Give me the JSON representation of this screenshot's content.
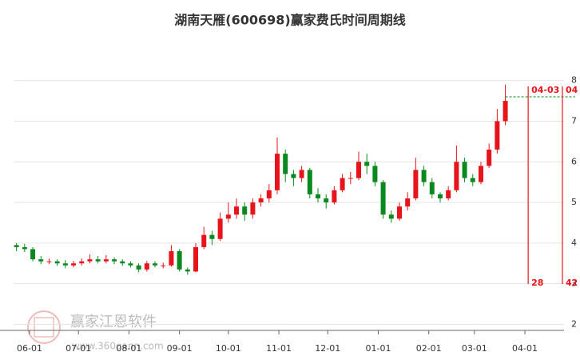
{
  "chart_data": {
    "type": "candlestick",
    "title": "湖南天雁(600698)赢家费氏时间周期线",
    "watermark": "赢家江恩软件",
    "watermark_url": "www.360gann.com",
    "x": [
      -8,
      -3,
      2,
      7,
      12,
      17,
      22,
      27,
      32,
      37,
      42,
      47,
      52,
      57,
      62,
      67,
      72,
      77,
      82,
      87,
      92,
      97,
      102,
      107,
      112,
      117,
      122,
      127,
      132,
      137,
      142,
      147,
      152,
      157,
      162,
      167,
      172,
      177,
      182,
      187,
      192,
      197,
      202,
      207,
      212,
      217,
      222,
      227,
      232,
      237,
      242,
      247,
      252,
      257,
      262,
      267,
      272,
      277,
      282,
      287,
      292
    ],
    "open": [
      3.95,
      3.9,
      3.85,
      3.6,
      3.55,
      3.55,
      3.5,
      3.45,
      3.5,
      3.55,
      3.6,
      3.55,
      3.6,
      3.55,
      3.5,
      3.45,
      3.35,
      3.5,
      3.45,
      3.45,
      3.8,
      3.35,
      3.3,
      3.9,
      4.2,
      4.1,
      4.6,
      4.7,
      4.9,
      4.7,
      5.0,
      5.1,
      5.3,
      6.2,
      5.7,
      5.6,
      5.8,
      5.2,
      5.1,
      5.0,
      5.3,
      5.6,
      5.6,
      6.0,
      5.9,
      5.5,
      4.7,
      4.6,
      4.9,
      5.1,
      5.8,
      5.5,
      5.2,
      5.1,
      5.3,
      6.0,
      5.6,
      5.5,
      5.9,
      6.3,
      7.0
    ],
    "high": [
      4.0,
      3.98,
      3.9,
      3.68,
      3.62,
      3.6,
      3.58,
      3.56,
      3.62,
      3.72,
      3.68,
      3.7,
      3.65,
      3.6,
      3.55,
      3.5,
      3.56,
      3.55,
      3.52,
      3.95,
      3.85,
      3.4,
      4.0,
      4.4,
      4.3,
      4.75,
      5.0,
      5.1,
      5.0,
      5.1,
      5.2,
      5.45,
      6.6,
      6.3,
      5.8,
      5.9,
      5.85,
      5.35,
      5.2,
      5.4,
      5.7,
      5.75,
      6.25,
      6.2,
      6.0,
      5.55,
      4.8,
      5.0,
      5.25,
      6.1,
      5.9,
      5.6,
      5.25,
      5.4,
      6.4,
      6.1,
      5.7,
      6.0,
      6.45,
      7.3,
      7.9
    ],
    "low": [
      3.8,
      3.78,
      3.55,
      3.48,
      3.48,
      3.44,
      3.38,
      3.4,
      3.45,
      3.5,
      3.5,
      3.5,
      3.48,
      3.44,
      3.4,
      3.28,
      3.3,
      3.4,
      3.38,
      3.42,
      3.3,
      3.22,
      3.28,
      3.85,
      3.95,
      4.05,
      4.5,
      4.6,
      4.55,
      4.6,
      4.9,
      5.0,
      5.2,
      5.5,
      5.4,
      5.5,
      5.1,
      5.0,
      4.85,
      4.95,
      5.25,
      5.45,
      5.55,
      5.7,
      5.4,
      4.6,
      4.5,
      4.55,
      4.8,
      5.05,
      5.4,
      5.1,
      5.0,
      5.05,
      5.25,
      5.5,
      5.4,
      5.45,
      5.85,
      6.2,
      6.9
    ],
    "close": [
      3.9,
      3.85,
      3.6,
      3.55,
      3.55,
      3.5,
      3.45,
      3.5,
      3.55,
      3.6,
      3.55,
      3.6,
      3.55,
      3.5,
      3.45,
      3.35,
      3.5,
      3.45,
      3.45,
      3.8,
      3.35,
      3.3,
      3.9,
      4.2,
      4.1,
      4.6,
      4.7,
      4.9,
      4.7,
      5.0,
      5.1,
      5.3,
      6.2,
      5.7,
      5.6,
      5.8,
      5.2,
      5.1,
      5.0,
      5.3,
      5.6,
      5.6,
      6.0,
      5.9,
      5.5,
      4.7,
      4.6,
      4.9,
      5.1,
      5.8,
      5.5,
      5.2,
      5.1,
      5.3,
      6.0,
      5.6,
      5.5,
      5.9,
      6.3,
      7.0,
      7.5
    ],
    "up_color": "#e8141b",
    "down_color": "#0a8a1e",
    "xlim": [
      -9.3,
      328
    ],
    "xticks": [
      {
        "value": 0,
        "label": "06-01"
      },
      {
        "value": 30,
        "label": "07-01"
      },
      {
        "value": 61,
        "label": "08-01"
      },
      {
        "value": 92,
        "label": "09-01"
      },
      {
        "value": 122,
        "label": "10-01"
      },
      {
        "value": 153,
        "label": "11-01"
      },
      {
        "value": 183,
        "label": "12-01"
      },
      {
        "value": 214,
        "label": "01-01"
      },
      {
        "value": 245,
        "label": "02-01"
      },
      {
        "value": 273,
        "label": "03-01"
      },
      {
        "value": 304,
        "label": "04-01"
      }
    ],
    "ylim": [
      1.85,
      8.9
    ],
    "yticks": [
      2,
      3,
      4,
      5,
      6,
      7,
      8
    ],
    "grid": true,
    "reference_line": {
      "value": 7.6,
      "color": "#0a8a1e"
    },
    "cycle_lines": [
      {
        "x": 306,
        "top_label": "04-03",
        "bottom_label": "28"
      },
      {
        "x": 327,
        "top_label": "04",
        "bottom_label": "42"
      }
    ],
    "cycle_color": "#e8141b"
  }
}
